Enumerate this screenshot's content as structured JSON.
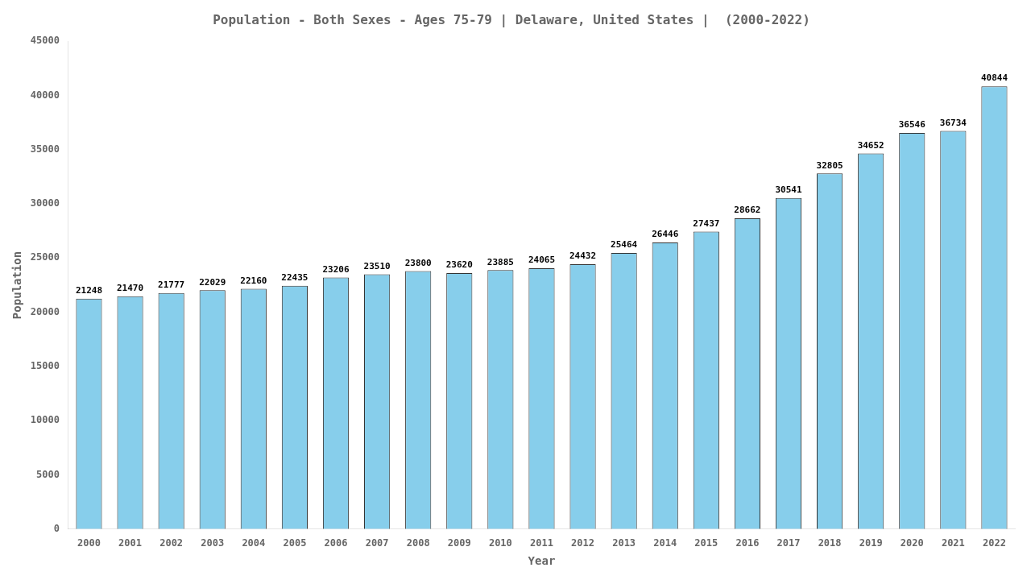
{
  "chart_data": {
    "type": "bar",
    "title": "Population - Both Sexes - Ages 75-79 | Delaware, United States |  (2000-2022)",
    "x_label": "Year",
    "y_label": "Population",
    "categories": [
      "2000",
      "2001",
      "2002",
      "2003",
      "2004",
      "2005",
      "2006",
      "2007",
      "2008",
      "2009",
      "2010",
      "2011",
      "2012",
      "2013",
      "2014",
      "2015",
      "2016",
      "2017",
      "2018",
      "2019",
      "2020",
      "2021",
      "2022"
    ],
    "values": [
      21248,
      21470,
      21777,
      22029,
      22160,
      22435,
      23206,
      23510,
      23800,
      23620,
      23885,
      24065,
      24432,
      25464,
      26446,
      27437,
      28662,
      30541,
      32805,
      34652,
      36546,
      36734,
      40844
    ],
    "color": "#87CEEB",
    "ylim": [
      0,
      45000
    ],
    "yticks": [
      0,
      5000,
      10000,
      15000,
      20000,
      25000,
      30000,
      35000,
      40000,
      45000
    ],
    "grid": false,
    "data_labels": true
  }
}
